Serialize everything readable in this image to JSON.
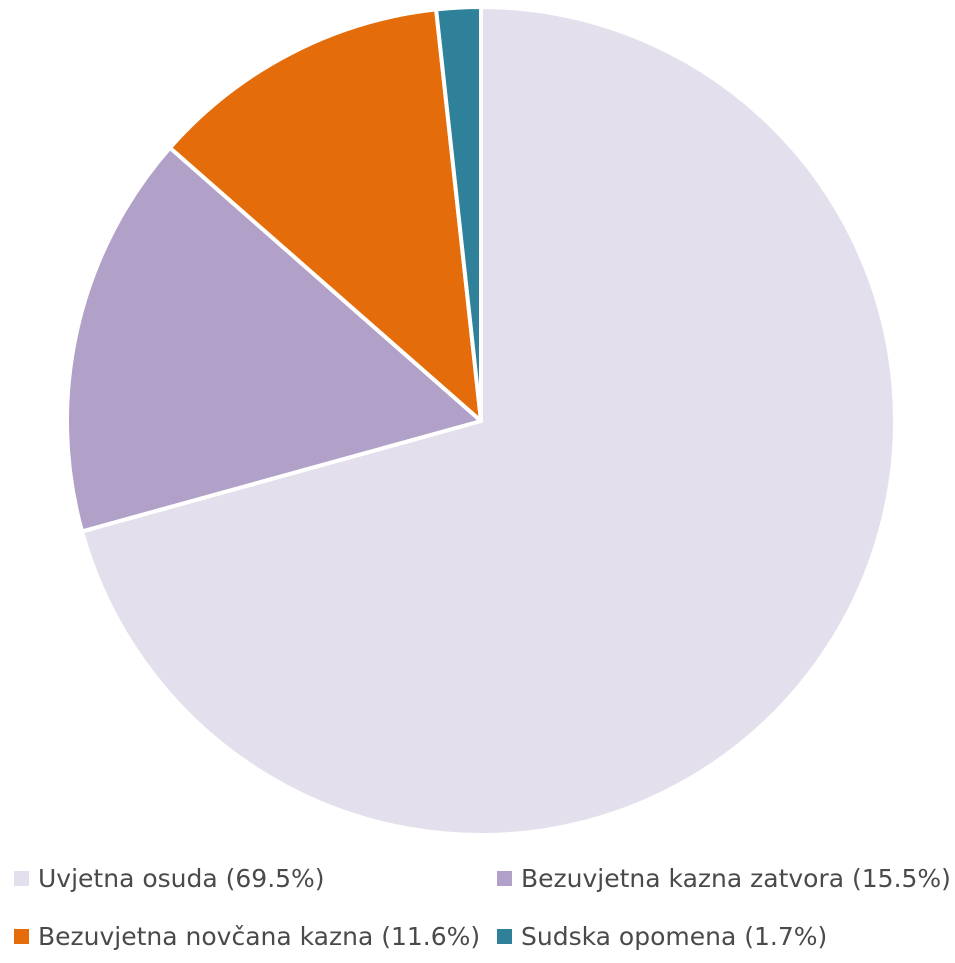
{
  "chart_data": {
    "type": "pie",
    "title": "",
    "slices": [
      {
        "label": "Uvjetna osuda",
        "value": 69.5,
        "color": "#e4dfec",
        "legend_text": "Uvjetna osuda (69.5%)"
      },
      {
        "label": "Bezuvjetna kazna zatvora",
        "value": 15.5,
        "color": "#b1a0c7",
        "legend_text": "Bezuvjetna kazna zatvora (15.5%)"
      },
      {
        "label": "Bezuvjetna novčana kazna",
        "value": 11.6,
        "color": "#e46c0a",
        "legend_text": "Bezuvjetna novčana kazna (11.6%)"
      },
      {
        "label": "Sudska opomena",
        "value": 1.7,
        "color": "#2e8198",
        "legend_text": "Sudska opomena (1.7%)"
      }
    ],
    "legend_position": "bottom",
    "start_angle": "top",
    "direction": "clockwise"
  }
}
